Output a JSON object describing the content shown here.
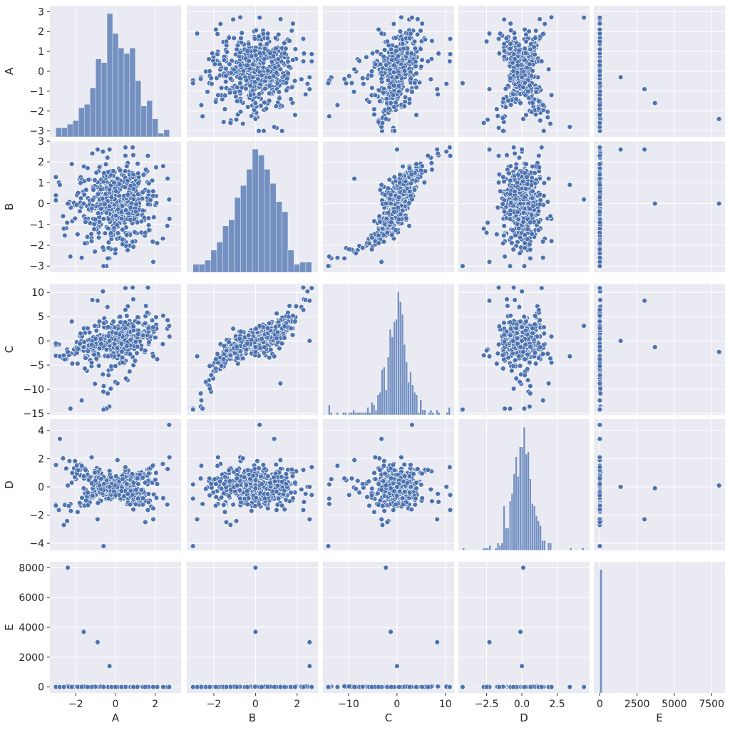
{
  "chart_data": {
    "type": "scatter",
    "subtype": "pairplot",
    "variables": [
      "A",
      "B",
      "C",
      "D",
      "E"
    ],
    "diagonal": "histogram",
    "grid": true,
    "background": "#eaeaf2",
    "point_color": "#4c72b0",
    "hist_color": "#4c72b0",
    "axes": {
      "A": {
        "lim": [
          -3.3,
          3.3
        ],
        "ticks": [
          -3,
          -2,
          -1,
          0,
          1,
          2,
          3
        ],
        "tick_labels": [
          "−3",
          "−2",
          "−1",
          "0",
          "1",
          "2",
          "3"
        ]
      },
      "B": {
        "lim": [
          -3.3,
          3.0
        ],
        "ticks": [
          -3,
          -2,
          -1,
          0,
          1,
          2,
          3
        ],
        "tick_labels": [
          "−3",
          "−2",
          "−1",
          "0",
          "1",
          "2",
          "3"
        ]
      },
      "C": {
        "lim": [
          -15.3,
          11.8
        ],
        "ticks": [
          -15,
          -10,
          -5,
          0,
          5,
          10
        ],
        "tick_labels": [
          "−15",
          "−10",
          "−5",
          "0",
          "5",
          "10"
        ]
      },
      "D": {
        "lim": [
          -4.5,
          4.8
        ],
        "ticks": [
          -4,
          -2,
          0,
          2,
          4
        ],
        "tick_labels": [
          "−4",
          "−2",
          "0",
          "2",
          "4"
        ]
      },
      "E": {
        "lim": [
          -400,
          8400
        ],
        "ticks": [
          0,
          2000,
          4000,
          6000,
          8000
        ],
        "tick_labels": [
          "0",
          "2000",
          "4000",
          "6000",
          "8000"
        ]
      }
    },
    "x_axis_ticks": {
      "A": {
        "ticks": [
          -2,
          0,
          2
        ],
        "tick_labels": [
          "−2",
          "0",
          "2"
        ]
      },
      "B": {
        "ticks": [
          -2,
          0,
          2
        ],
        "tick_labels": [
          "−2",
          "0",
          "2"
        ]
      },
      "C": {
        "ticks": [
          -10,
          0,
          10
        ],
        "tick_labels": [
          "−10",
          "0",
          "10"
        ]
      },
      "D": {
        "ticks": [
          -2.5,
          0,
          2.5
        ],
        "tick_labels": [
          "−2.5",
          "0.0",
          "2.5"
        ]
      },
      "E": {
        "ticks": [
          0,
          2500,
          5000,
          7500
        ],
        "tick_labels": [
          "0",
          "2500",
          "5000",
          "7500"
        ]
      }
    },
    "notable_points": {
      "E_outliers": [
        {
          "A": -2.4,
          "B": 0.0,
          "C": -2.3,
          "D": 0.1,
          "E": 8000
        },
        {
          "A": -1.6,
          "B": 0.0,
          "C": -1.3,
          "D": -0.1,
          "E": 3700
        },
        {
          "A": -0.9,
          "B": 2.6,
          "C": 8.3,
          "D": -2.3,
          "E": 3000
        },
        {
          "A": -0.3,
          "B": 2.6,
          "C": 0.0,
          "D": 0.0,
          "E": 1400
        }
      ]
    },
    "sample_points": [
      {
        "A": -2.8,
        "B": 0.9,
        "C": -3.2,
        "D": 3.4,
        "E": 0
      },
      {
        "A": -2.6,
        "B": -1.2,
        "C": -3.0,
        "D": -2.7,
        "E": 0
      },
      {
        "A": 2.7,
        "B": 0.2,
        "C": 3.1,
        "D": 4.4,
        "E": 0
      },
      {
        "A": 2.4,
        "B": 1.8,
        "C": 5.2,
        "D": -0.8,
        "E": 0
      },
      {
        "A": 0.5,
        "B": 2.3,
        "C": 6.4,
        "D": 1.2,
        "E": 0
      },
      {
        "A": 1.9,
        "B": -2.8,
        "C": -3.2,
        "D": -2.3,
        "E": 0
      },
      {
        "A": -0.6,
        "B": -3.0,
        "C": -14.2,
        "D": -4.2,
        "E": 0
      },
      {
        "A": -1.7,
        "B": -2.6,
        "C": -12.3,
        "D": 1.5,
        "E": 0
      },
      {
        "A": 0.1,
        "B": 1.2,
        "C": -8.8,
        "D": 1.9,
        "E": 0
      },
      {
        "A": 0.5,
        "B": 2.7,
        "C": 10.9,
        "D": 1.4,
        "E": 0
      },
      {
        "A": -1.2,
        "B": -1.8,
        "C": -4.5,
        "D": 2.1,
        "E": 0
      },
      {
        "A": 1.5,
        "B": -1.4,
        "C": -2.0,
        "D": -2.5,
        "E": 0
      },
      {
        "A": 0.9,
        "B": 1.4,
        "C": 3.0,
        "D": -1.6,
        "E": 0
      },
      {
        "A": -0.2,
        "B": 0.3,
        "C": 0.4,
        "D": 0.2,
        "E": 0
      },
      {
        "A": 0.3,
        "B": -0.4,
        "C": -0.6,
        "D": -0.3,
        "E": 0
      },
      {
        "A": -1.4,
        "B": 1.7,
        "C": 2.6,
        "D": -0.4,
        "E": 0
      },
      {
        "A": 1.1,
        "B": -0.9,
        "C": -1.2,
        "D": 0.6,
        "E": 0
      },
      {
        "A": -2.2,
        "B": 1.9,
        "C": 4.0,
        "D": 0.3,
        "E": 0
      },
      {
        "A": 2.1,
        "B": -1.9,
        "C": -3.8,
        "D": 0.2,
        "E": 0
      },
      {
        "A": 0.0,
        "B": -2.2,
        "C": -5.2,
        "D": -0.6,
        "E": 0
      }
    ]
  }
}
